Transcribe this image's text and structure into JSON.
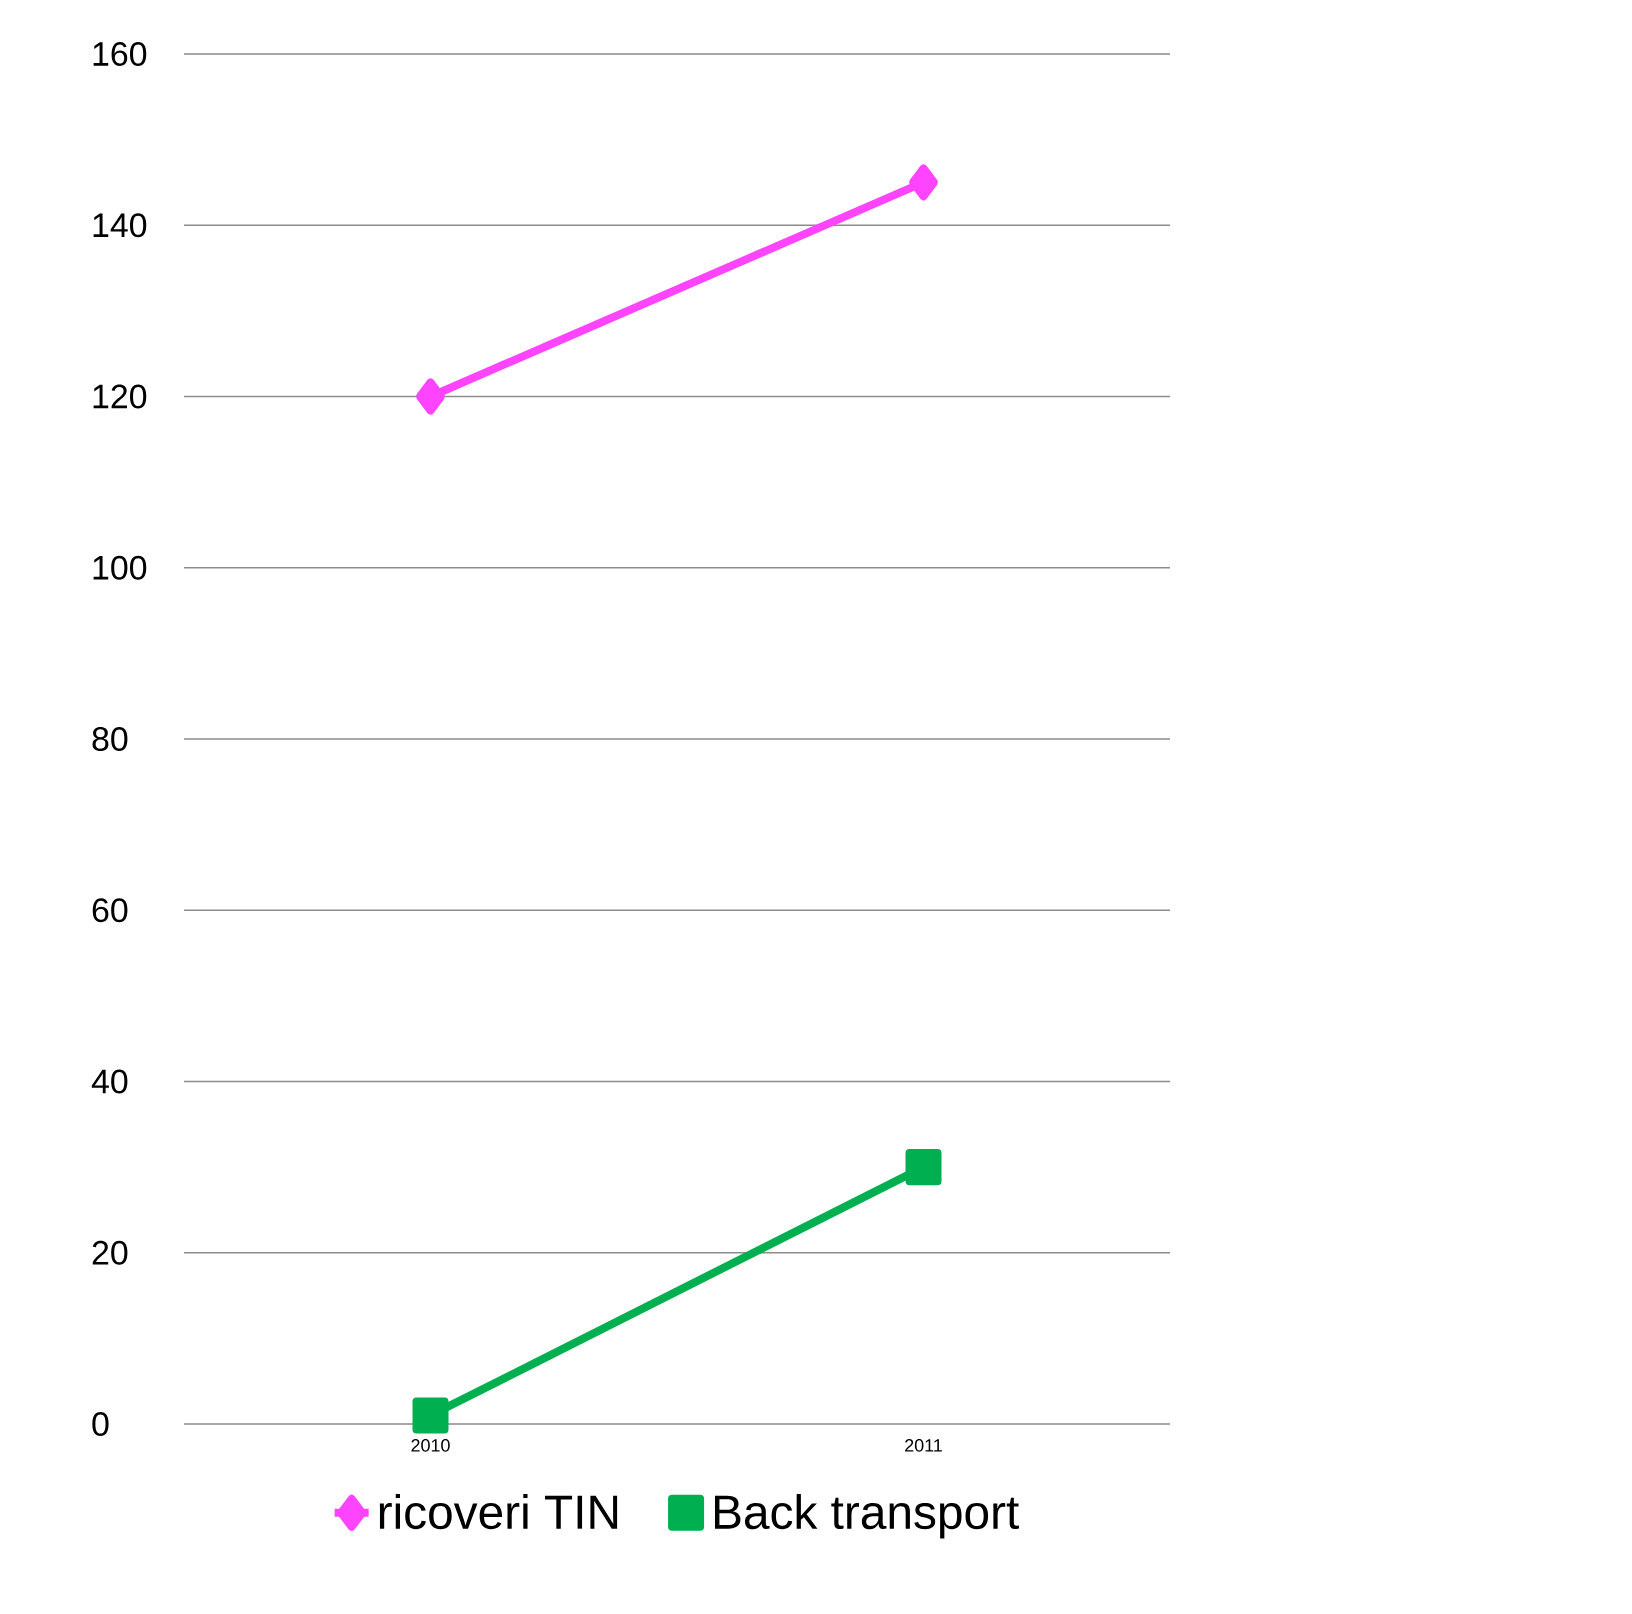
{
  "chart_data": {
    "type": "line",
    "categories": [
      "2010",
      "2011"
    ],
    "series": [
      {
        "name": "ricoveri TIN",
        "color": "#ff44ff",
        "values": [
          120,
          145
        ],
        "marker": "diamond"
      },
      {
        "name": "Back transport",
        "color": "#00b050",
        "values": [
          1,
          30
        ],
        "marker": "square"
      }
    ],
    "ylim": [
      0,
      160
    ],
    "yticks": [
      0,
      20,
      40,
      60,
      80,
      100,
      120,
      140,
      160
    ],
    "grid": "y",
    "legend": "bottom",
    "line_style": "solid"
  }
}
